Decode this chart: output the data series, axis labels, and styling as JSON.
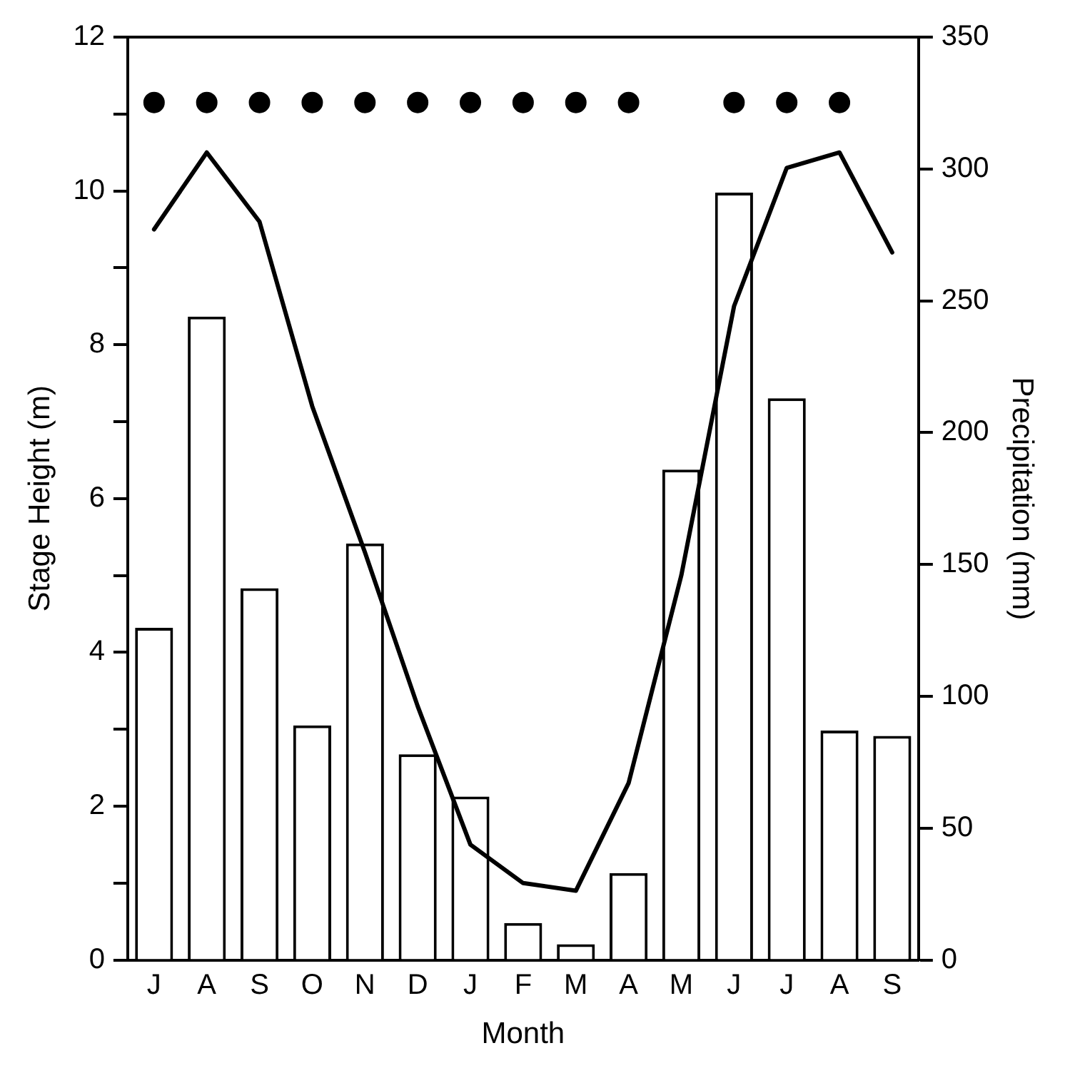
{
  "chart_data": {
    "type": "bar",
    "xlabel": "Month",
    "ylabel": "Stage Height (m)",
    "y2label": "Precipitation (mm)",
    "categories": [
      "J",
      "A",
      "S",
      "O",
      "N",
      "D",
      "J",
      "F",
      "M",
      "A",
      "M",
      "J",
      "J",
      "A",
      "S"
    ],
    "ylim": [
      0,
      12
    ],
    "yticks": [
      0,
      {
        "value": 1,
        "label": null
      },
      2,
      {
        "value": 3,
        "label": null
      },
      4,
      {
        "value": 5,
        "label": null
      },
      6,
      {
        "value": 7,
        "label": null
      },
      8,
      {
        "value": 9,
        "label": null
      },
      10,
      {
        "value": 11,
        "label": null
      },
      12
    ],
    "y2lim": [
      0,
      350
    ],
    "y2ticks": [
      0,
      50,
      100,
      150,
      200,
      250,
      300,
      350
    ],
    "legend": false,
    "series": [
      {
        "axis": "y2",
        "color": "#ffffff",
        "values": [
          126,
          244,
          141,
          89,
          158,
          78,
          62,
          14,
          6,
          33,
          186,
          291,
          213,
          87,
          85
        ]
      },
      {
        "type": "line",
        "axis": "y",
        "color": "#000000",
        "marker": "none",
        "line_style": "solid",
        "values": [
          9.5,
          10.5,
          9.6,
          7.2,
          5.3,
          3.3,
          1.5,
          1.0,
          0.9,
          2.3,
          5.0,
          8.5,
          10.3,
          10.5,
          9.2
        ]
      },
      {
        "type": "scatter",
        "axis": "y",
        "color": "#000000",
        "marker": "circle",
        "values": [
          11.15,
          11.15,
          11.15,
          11.15,
          11.15,
          11.15,
          11.15,
          11.15,
          11.15,
          11.15,
          null,
          11.15,
          11.15,
          11.15,
          null
        ]
      }
    ]
  }
}
